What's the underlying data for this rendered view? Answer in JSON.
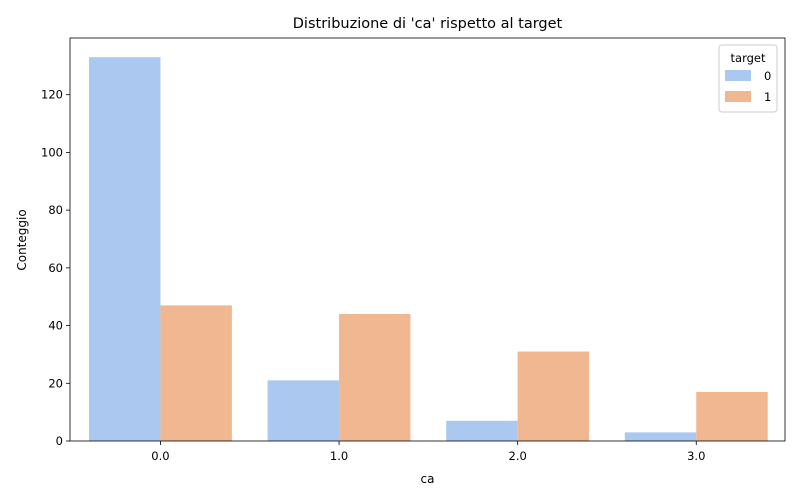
{
  "chart_data": {
    "type": "bar",
    "title": "Distribuzione di 'ca' rispetto al target",
    "xlabel": "ca",
    "ylabel": "Conteggio",
    "categories": [
      "0.0",
      "1.0",
      "2.0",
      "3.0"
    ],
    "series": [
      {
        "name": "0",
        "values": [
          133,
          21,
          7,
          3
        ],
        "color": "#abc9f0"
      },
      {
        "name": "1",
        "values": [
          47,
          44,
          31,
          17
        ],
        "color": "#f0b790"
      }
    ],
    "ylim": [
      0,
      139.65
    ],
    "yticks": [
      0,
      20,
      40,
      60,
      80,
      100,
      120
    ],
    "grid": false,
    "legend": {
      "title": "target",
      "placement": "top-right"
    }
  }
}
